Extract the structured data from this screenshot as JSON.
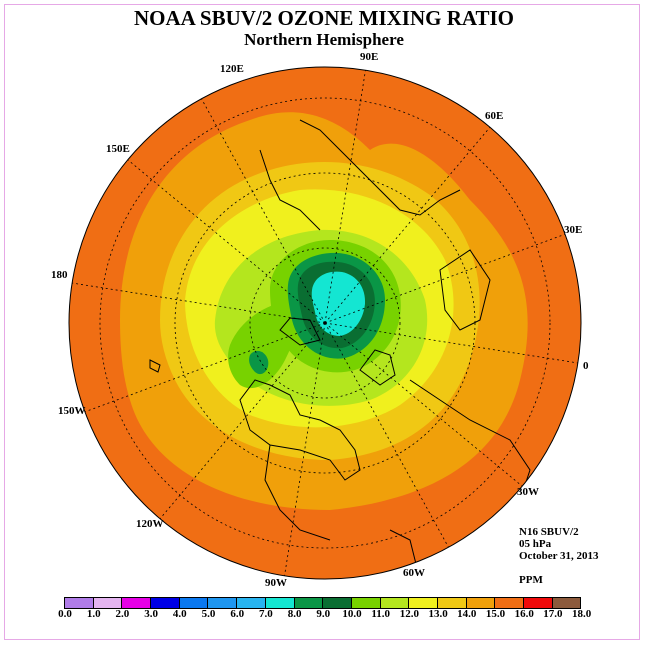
{
  "title": "NOAA SBUV/2 OZONE MIXING RATIO",
  "subtitle": "Northern Hemisphere",
  "longitude_labels": {
    "e90": "90E",
    "e120": "120E",
    "e60": "60E",
    "e150": "150E",
    "e30": "30E",
    "lon180": "180",
    "lon0": "0",
    "w150": "150W",
    "w30": "30W",
    "w120": "120W",
    "w60": "60W",
    "w90": "90W"
  },
  "info": {
    "instrument": "N16 SBUV/2",
    "level": "05 hPa",
    "date": "October 31, 2013",
    "units": "PPM"
  },
  "colorbar": {
    "ticks": [
      "0.0",
      "1.0",
      "2.0",
      "3.0",
      "4.0",
      "5.0",
      "6.0",
      "7.0",
      "8.0",
      "9.0",
      "10.0",
      "11.0",
      "12.0",
      "13.0",
      "14.0",
      "15.0",
      "16.0",
      "17.0",
      "18.0"
    ],
    "colors": [
      "#b07ce8",
      "#e4b4f0",
      "#e600e6",
      "#0000e6",
      "#0a78f0",
      "#1e96f0",
      "#28b4f0",
      "#14e6d2",
      "#0a9646",
      "#0a6e32",
      "#78d200",
      "#b4e61e",
      "#f0f01e",
      "#f0c814",
      "#f0a00a",
      "#f06e14",
      "#f00a0a",
      "#8c5a3c"
    ]
  }
}
